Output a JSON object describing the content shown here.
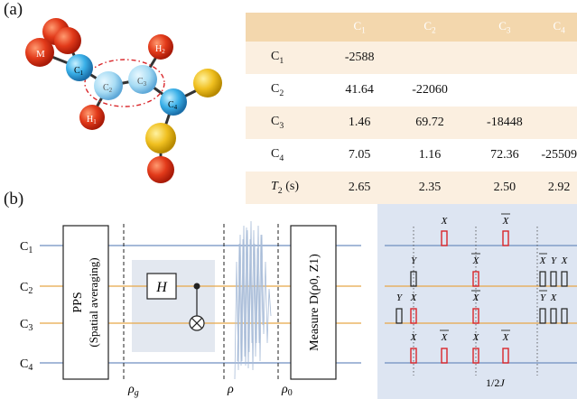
{
  "panel_a": {
    "label": "(a)",
    "molecule": {
      "atoms": [
        "M",
        "C1",
        "C2",
        "C3",
        "H1",
        "H2",
        "C4"
      ]
    },
    "table": {
      "headers": [
        "C1",
        "C2",
        "C3",
        "C4"
      ],
      "rows": [
        {
          "label": "C1",
          "values": [
            "-2588",
            "",
            "",
            ""
          ]
        },
        {
          "label": "C2",
          "values": [
            "41.64",
            "-22060",
            "",
            ""
          ]
        },
        {
          "label": "C3",
          "values": [
            "1.46",
            "69.72",
            "-18448",
            ""
          ]
        },
        {
          "label": "C4",
          "values": [
            "7.05",
            "1.16",
            "72.36",
            "-25509"
          ]
        },
        {
          "label": "T2 (s)",
          "values": [
            "2.65",
            "2.35",
            "2.50",
            "2.92"
          ]
        }
      ]
    }
  },
  "panel_b": {
    "label": "(b)",
    "qubits": [
      "C1",
      "C2",
      "C3",
      "C4"
    ],
    "pps_box": "PPS",
    "pps_sub": "(Spatial averaging)",
    "gate_H": "H",
    "measure": "Measure D(ρ0, Z1)",
    "rho_g": "ρg",
    "rho": "ρ",
    "rho0": "ρ0",
    "pulse_note": "1/2J",
    "pulse_labels": [
      "X",
      "X̄",
      "Y",
      "Ȳ"
    ]
  },
  "colors": {
    "qubit_line_c1": "#5b7fb0",
    "qubit_line_c2": "#e0a040",
    "pulse_red": "#d9262a",
    "pulse_black": "#222222",
    "pulse_panel_bg": "#dde5f2"
  }
}
